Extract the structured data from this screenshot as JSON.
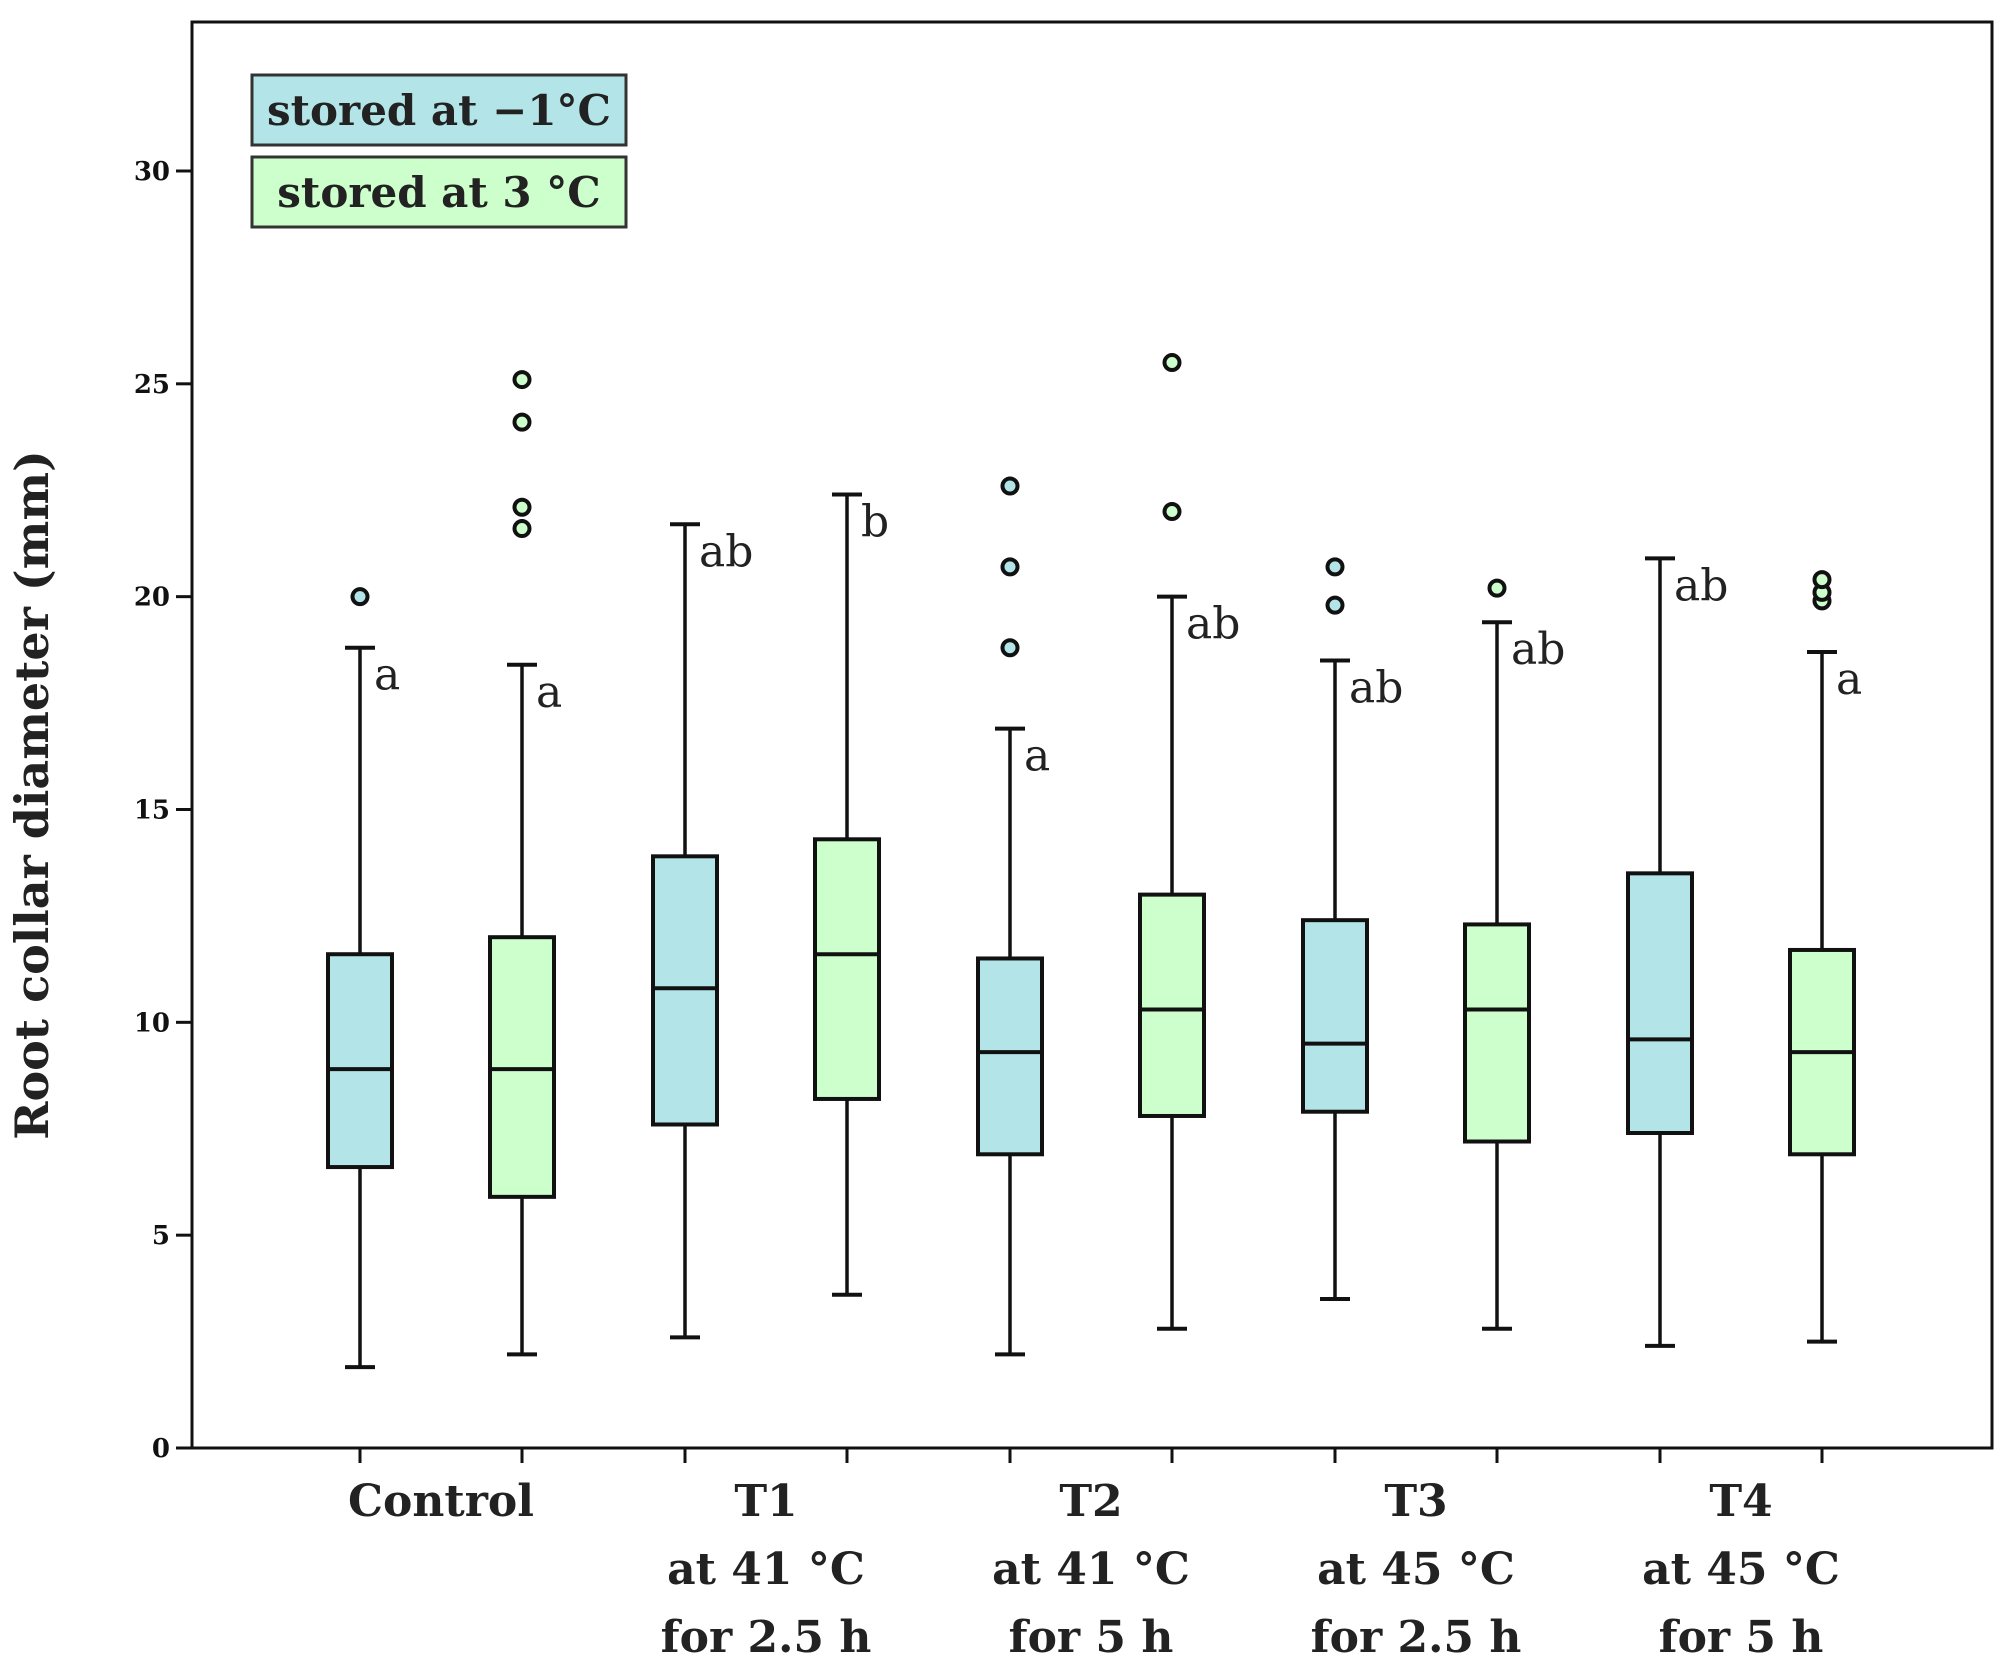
{
  "chart_data": {
    "type": "boxplot",
    "title": "",
    "xlabel": "",
    "ylabel": "Root collar diameter (mm)",
    "ylim": [
      0,
      33.5
    ],
    "yticks": [
      0,
      5,
      10,
      15,
      20,
      25,
      30
    ],
    "grid": false,
    "legend_position": "top-left",
    "colors": {
      "cold": "#b3e5e8",
      "warm": "#ccffcc",
      "stroke": "#111111"
    },
    "legend": [
      {
        "label": "stored at −1°C",
        "series": "cold"
      },
      {
        "label": "stored at 3 °C",
        "series": "warm"
      }
    ],
    "categories": [
      {
        "lines": [
          "Control"
        ]
      },
      {
        "lines": [
          "T1",
          "at 41 °C",
          "for 2.5 h"
        ]
      },
      {
        "lines": [
          "T2",
          "at 41 °C",
          "for 5 h"
        ]
      },
      {
        "lines": [
          "T3",
          "at 45 °C",
          "for 2.5 h"
        ]
      },
      {
        "lines": [
          "T4",
          "at 45 °C",
          "for 5 h"
        ]
      }
    ],
    "boxes": [
      {
        "group": 0,
        "series": "cold",
        "min": 1.9,
        "q1": 6.6,
        "median": 8.9,
        "q3": 11.6,
        "max": 18.8,
        "outliers": [
          20.0
        ],
        "sig": "a"
      },
      {
        "group": 0,
        "series": "warm",
        "min": 2.2,
        "q1": 5.9,
        "median": 8.9,
        "q3": 12.0,
        "max": 18.4,
        "outliers": [
          21.6,
          22.1,
          24.1,
          25.1
        ],
        "sig": "a"
      },
      {
        "group": 1,
        "series": "cold",
        "min": 2.6,
        "q1": 7.6,
        "median": 10.8,
        "q3": 13.9,
        "max": 21.7,
        "outliers": [],
        "sig": "ab"
      },
      {
        "group": 1,
        "series": "warm",
        "min": 3.6,
        "q1": 8.2,
        "median": 11.6,
        "q3": 14.3,
        "max": 22.4,
        "outliers": [],
        "sig": "b"
      },
      {
        "group": 2,
        "series": "cold",
        "min": 2.2,
        "q1": 6.9,
        "median": 9.3,
        "q3": 11.5,
        "max": 16.9,
        "outliers": [
          18.8,
          20.7,
          22.6
        ],
        "sig": "a"
      },
      {
        "group": 2,
        "series": "warm",
        "min": 2.8,
        "q1": 7.8,
        "median": 10.3,
        "q3": 13.0,
        "max": 20.0,
        "outliers": [
          22.0,
          25.5
        ],
        "sig": "ab"
      },
      {
        "group": 3,
        "series": "cold",
        "min": 3.5,
        "q1": 7.9,
        "median": 9.5,
        "q3": 12.4,
        "max": 18.5,
        "outliers": [
          19.8,
          20.7
        ],
        "sig": "ab"
      },
      {
        "group": 3,
        "series": "warm",
        "min": 2.8,
        "q1": 7.2,
        "median": 10.3,
        "q3": 12.3,
        "max": 19.4,
        "outliers": [
          20.2
        ],
        "sig": "ab"
      },
      {
        "group": 4,
        "series": "cold",
        "min": 2.4,
        "q1": 7.4,
        "median": 9.6,
        "q3": 13.5,
        "max": 20.9,
        "outliers": [],
        "sig": "ab"
      },
      {
        "group": 4,
        "series": "warm",
        "min": 2.5,
        "q1": 6.9,
        "median": 9.3,
        "q3": 11.7,
        "max": 18.7,
        "outliers": [
          19.9,
          20.1,
          20.4
        ],
        "sig": "a"
      }
    ]
  }
}
